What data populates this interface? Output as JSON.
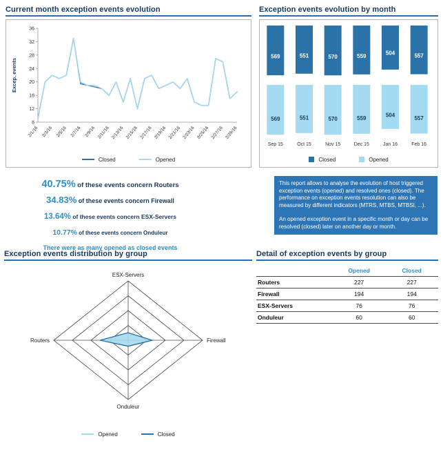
{
  "colors": {
    "closed": "#2B72A8",
    "opened": "#A5DBF0",
    "navy": "#17375E",
    "accent": "#2D8FC8",
    "infobox_bg": "#2E75B6",
    "title_underline": "#2470B3"
  },
  "panels": {
    "daily": {
      "title": "Current month exception events evolution"
    },
    "monthly": {
      "title": "Exception events evolution by month"
    },
    "radar": {
      "title": "Exception events distribution by group"
    },
    "table": {
      "title": "Detail of exception events by group"
    }
  },
  "stats": {
    "items": [
      {
        "pct": "40.75%",
        "rest": " of these events concern Routers"
      },
      {
        "pct": "34.83%",
        "rest": " of these events concern Firewall"
      },
      {
        "pct": "13.64%",
        "rest": " of these events concern ESX-Servers"
      },
      {
        "pct": "10.77%",
        "rest": " of these events concern Onduleur"
      }
    ],
    "note": "There were as many opened as closed events"
  },
  "info_box": {
    "p1": "This report allows to analyse the evolution of host triggered exception events (opened) and resolved ones (closed). The performance on exception events resolution can also be measured by different indicators (MTRS, MTBS, MTBSI, ...).",
    "p2": "An opened exception event in a specific month or day can be resolved (closed) later on another day or month."
  },
  "detail_table": {
    "columns": [
      "",
      "Opened",
      "Closed"
    ],
    "rows": [
      {
        "group": "Routers",
        "opened": 227,
        "closed": 227
      },
      {
        "group": "Firewall",
        "opened": 194,
        "closed": 194
      },
      {
        "group": "ESX-Servers",
        "opened": 76,
        "closed": 76
      },
      {
        "group": "Onduleur",
        "opened": 60,
        "closed": 60
      }
    ]
  },
  "chart_data": [
    {
      "type": "line",
      "title": "Current month exception events evolution",
      "xlabel": "",
      "ylabel": "Excep. events",
      "ylim": [
        8,
        36
      ],
      "yticks": [
        8,
        12,
        16,
        20,
        24,
        28,
        32,
        36
      ],
      "x_tick_every": 2,
      "grid": false,
      "legend_position": "bottom",
      "x": [
        "2/1/16",
        "2/2/16",
        "2/3/16",
        "2/4/16",
        "2/5/16",
        "2/6/16",
        "2/7/16",
        "2/8/16",
        "2/9/16",
        "2/10/16",
        "2/11/16",
        "2/12/16",
        "2/13/16",
        "2/14/16",
        "2/15/16",
        "2/16/16",
        "2/17/16",
        "2/18/16",
        "2/19/16",
        "2/20/16",
        "2/21/16",
        "2/22/16",
        "2/23/16",
        "2/24/16",
        "2/25/16",
        "2/26/16",
        "2/27/16",
        "2/28/16",
        "2/29/16"
      ],
      "series": [
        {
          "name": "Closed",
          "color": "#2B72A8",
          "values": [
            9,
            20,
            22,
            21,
            22,
            33,
            19.5,
            19,
            18.5,
            18,
            16,
            20,
            14,
            21,
            12,
            21,
            22,
            18,
            19,
            20,
            18,
            21,
            14,
            13,
            13,
            27,
            26,
            15,
            17
          ]
        },
        {
          "name": "Opened",
          "color": "#A5DBF0",
          "values": [
            9,
            20,
            22,
            21,
            22,
            33,
            20,
            19,
            19,
            18,
            16,
            20,
            14,
            21,
            12,
            21,
            22,
            18,
            19,
            20,
            18,
            21,
            14,
            13,
            13,
            27,
            26,
            15,
            17
          ]
        }
      ]
    },
    {
      "type": "bar",
      "title": "Exception events evolution by month",
      "layout": "mirrored",
      "value_max": 600,
      "legend_position": "bottom",
      "categories": [
        "Sep 15",
        "Oct 15",
        "Nov 15",
        "Dec 15",
        "Jan 16",
        "Feb 16"
      ],
      "series": [
        {
          "name": "Closed",
          "color": "#2B72A8",
          "values": [
            569,
            551,
            570,
            559,
            504,
            557
          ]
        },
        {
          "name": "Opened",
          "color": "#A5DBF0",
          "values": [
            569,
            551,
            570,
            559,
            504,
            557
          ]
        }
      ]
    },
    {
      "type": "radar",
      "title": "Exception events distribution by group",
      "axes": [
        "ESX-Servers",
        "Firewall",
        "Onduleur",
        "Routers"
      ],
      "rings": 4,
      "max": 600,
      "legend_position": "bottom",
      "series": [
        {
          "name": "Opened",
          "color": "#A5DBF0",
          "values": [
            76,
            194,
            60,
            227
          ]
        },
        {
          "name": "Closed",
          "color": "#2B72A8",
          "values": [
            76,
            194,
            60,
            227
          ]
        }
      ]
    }
  ]
}
